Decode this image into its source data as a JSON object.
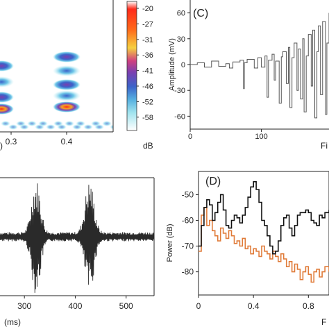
{
  "chart_data": [
    {
      "id": "spectrogram",
      "type": "heatmap",
      "panel_label": "",
      "x_ticks": [
        "0.3",
        "0.4"
      ],
      "x_label_fragment": ")",
      "colorbar": {
        "ticks": [
          "-20",
          "-27",
          "-31",
          "-36",
          "-41",
          "-46",
          "-52",
          "-58"
        ],
        "unit": "dB",
        "colors": [
          "#ff2a1a",
          "#ff6a1a",
          "#f5a623",
          "#e8d840",
          "#b05cd0",
          "#7a3fb0",
          "#3b63c9",
          "#6fc7e8",
          "#bff0f5",
          "#ffffff"
        ]
      }
    },
    {
      "id": "panel-C",
      "type": "line",
      "panel_label": "(C)",
      "ylabel": "Amplitude (mV)",
      "xlabel_fragment": "Fi",
      "y_ticks": [
        "60",
        "30",
        "0",
        "-30",
        "-60"
      ],
      "x_ticks": [
        "0",
        "100"
      ],
      "ylim": [
        -75,
        75
      ],
      "xlim": [
        0,
        195
      ],
      "color": "#555555",
      "series": [
        {
          "x": [
            0,
            10,
            20,
            30,
            40,
            50,
            55,
            60,
            70,
            75,
            76,
            80,
            90,
            95,
            100,
            105,
            108,
            110,
            115,
            118,
            120,
            125,
            128,
            130,
            135,
            138,
            140,
            143,
            146,
            150,
            152,
            155,
            158,
            160,
            163,
            166,
            170,
            172,
            175,
            178,
            180,
            183,
            186,
            190,
            192,
            195
          ],
          "y": [
            0,
            2,
            -3,
            4,
            -2,
            1,
            -4,
            3,
            5,
            -28,
            2,
            6,
            -4,
            8,
            -3,
            10,
            -38,
            5,
            12,
            -18,
            4,
            -45,
            9,
            15,
            -22,
            20,
            -50,
            8,
            25,
            -30,
            18,
            -40,
            30,
            -55,
            10,
            35,
            -25,
            40,
            -62,
            15,
            45,
            -35,
            50,
            -58,
            25,
            60
          ]
        }
      ]
    },
    {
      "id": "waveform",
      "type": "line",
      "panel_label": "",
      "xlabel_fragment": "(ms)",
      "x_ticks": [
        "300",
        "400",
        "500"
      ],
      "xlim": [
        252,
        555
      ],
      "ylim": [
        -1,
        1
      ],
      "color": "#2a2a2a",
      "bursts": [
        {
          "center": 323,
          "amplitude": 0.95
        },
        {
          "center": 428,
          "amplitude": 0.95
        }
      ]
    },
    {
      "id": "panel-D",
      "type": "line",
      "panel_label": "(D)",
      "ylabel": "Power (dB)",
      "xlabel_fragment": "F",
      "y_ticks": [
        "-50",
        "-60",
        "-70",
        "-80"
      ],
      "x_ticks": [
        "0",
        "0.4",
        "0.8"
      ],
      "xlim": [
        0,
        0.95
      ],
      "ylim": [
        -89,
        -41
      ],
      "series": [
        {
          "color": "#111111",
          "x": [
            0,
            0.02,
            0.04,
            0.06,
            0.08,
            0.1,
            0.12,
            0.14,
            0.16,
            0.18,
            0.2,
            0.22,
            0.24,
            0.26,
            0.28,
            0.3,
            0.32,
            0.34,
            0.36,
            0.38,
            0.4,
            0.42,
            0.44,
            0.46,
            0.48,
            0.5,
            0.52,
            0.54,
            0.56,
            0.58,
            0.6,
            0.62,
            0.64,
            0.66,
            0.68,
            0.7,
            0.72,
            0.74,
            0.76,
            0.78,
            0.8,
            0.82,
            0.84,
            0.86,
            0.88,
            0.9,
            0.92,
            0.95
          ],
          "y": [
            -70,
            -62,
            -55,
            -52,
            -54,
            -60,
            -57,
            -53,
            -50,
            -56,
            -62,
            -63,
            -60,
            -58,
            -59,
            -61,
            -58,
            -55,
            -51,
            -47,
            -45,
            -48,
            -53,
            -60,
            -62,
            -66,
            -70,
            -73,
            -72,
            -68,
            -62,
            -59,
            -58,
            -63,
            -66,
            -62,
            -58,
            -57,
            -57,
            -56,
            -57,
            -60,
            -61,
            -62,
            -58,
            -59,
            -57,
            -56
          ]
        },
        {
          "color": "#e07b39",
          "x": [
            0,
            0.02,
            0.04,
            0.06,
            0.08,
            0.1,
            0.12,
            0.14,
            0.16,
            0.18,
            0.2,
            0.22,
            0.24,
            0.26,
            0.28,
            0.3,
            0.32,
            0.34,
            0.36,
            0.38,
            0.4,
            0.42,
            0.44,
            0.46,
            0.48,
            0.5,
            0.52,
            0.54,
            0.56,
            0.58,
            0.6,
            0.62,
            0.64,
            0.66,
            0.68,
            0.7,
            0.72,
            0.74,
            0.76,
            0.78,
            0.8,
            0.82,
            0.84,
            0.86,
            0.88,
            0.9,
            0.92,
            0.95
          ],
          "y": [
            -72,
            -58,
            -55,
            -62,
            -60,
            -64,
            -66,
            -68,
            -63,
            -65,
            -67,
            -64,
            -66,
            -69,
            -68,
            -70,
            -67,
            -71,
            -70,
            -73,
            -71,
            -72,
            -74,
            -70,
            -72,
            -73,
            -75,
            -72,
            -74,
            -76,
            -73,
            -75,
            -78,
            -76,
            -80,
            -77,
            -79,
            -83,
            -80,
            -78,
            -81,
            -84,
            -80,
            -79,
            -82,
            -80,
            -78,
            -80
          ]
        }
      ]
    }
  ]
}
